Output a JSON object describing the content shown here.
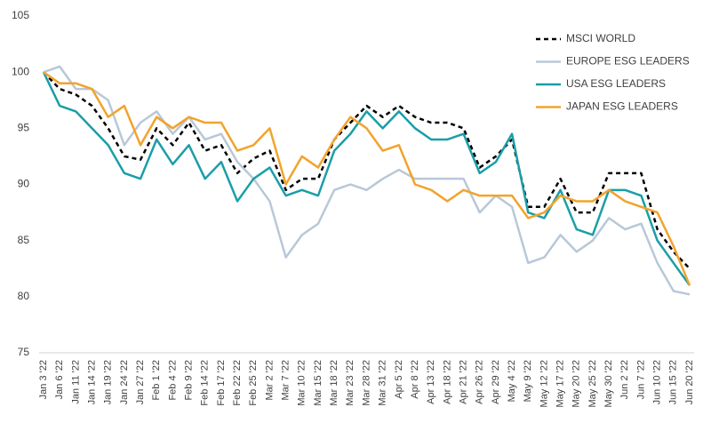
{
  "chart_data": {
    "type": "line",
    "categories": [
      "Jan 3 '22",
      "Jan 6 '22",
      "Jan 11 '22",
      "Jan 14 '22",
      "Jan 19 '22",
      "Jan 24 '22",
      "Jan 27 '22",
      "Feb 1 '22",
      "Feb 4 '22",
      "Feb 9 '22",
      "Feb 14 '22",
      "Feb 17 '22",
      "Feb 22 '22",
      "Feb 25 '22",
      "Mar 2 '22",
      "Mar 7 '22",
      "Mar 10 '22",
      "Mar 15 '22",
      "Mar 18 '22",
      "Mar 23 '22",
      "Mar 28 '22",
      "Mar 31 '22",
      "Apr 5 '22",
      "Apr 8 '22",
      "Apr 13 '22",
      "Apr 18 '22",
      "Apr 21 '22",
      "Apr 26 '22",
      "Apr 29 '22",
      "May 4 '22",
      "May 9 '22",
      "May 12 '22",
      "May 17 '22",
      "May 20 '22",
      "May 25 '22",
      "May 30 '22",
      "Jun 2 '22",
      "Jun 7 '22",
      "Jun 10 '22",
      "Jun 15 '22",
      "Jun 20 '22"
    ],
    "series": [
      {
        "name": "MSCI WORLD",
        "color": "#000000",
        "dashed": true,
        "values": [
          100,
          98.5,
          98,
          97,
          95,
          92.5,
          92.2,
          95,
          93.5,
          95.5,
          93,
          93.5,
          91,
          92.3,
          93,
          89.5,
          90.5,
          90.5,
          94,
          95.5,
          97,
          96,
          97,
          96,
          95.5,
          95.5,
          95,
          91.5,
          92.5,
          94,
          88,
          88,
          90.5,
          87.5,
          87.5,
          91,
          91,
          91,
          86,
          84,
          82.5
        ]
      },
      {
        "name": "EUROPE ESG LEADERS",
        "color": "#b8c8d8",
        "dashed": false,
        "values": [
          100,
          100.5,
          98.5,
          98.5,
          97.5,
          93.5,
          95.5,
          96.5,
          94.5,
          96,
          94,
          94.5,
          92,
          90.5,
          88.5,
          83.5,
          85.5,
          86.5,
          89.5,
          90,
          89.5,
          90.5,
          91.3,
          90.5,
          90.5,
          90.5,
          90.5,
          87.5,
          89,
          88,
          83,
          83.5,
          85.5,
          84,
          85,
          87,
          86,
          86.5,
          83,
          80.5,
          80.2
        ]
      },
      {
        "name": "USA ESG LEADERS",
        "color": "#1a9ea8",
        "dashed": false,
        "values": [
          100,
          97,
          96.5,
          95,
          93.5,
          91,
          90.5,
          94,
          91.8,
          93.5,
          90.5,
          92,
          88.5,
          90.5,
          91.5,
          89,
          89.5,
          89,
          93,
          94.5,
          96.5,
          95,
          96.5,
          95,
          94,
          94,
          94.5,
          91,
          92,
          94.5,
          87.5,
          87,
          89.5,
          86,
          85.5,
          89.5,
          89.5,
          89,
          85,
          83,
          81
        ]
      },
      {
        "name": "JAPAN ESG LEADERS",
        "color": "#f2a32c",
        "dashed": false,
        "values": [
          100,
          99,
          99,
          98.5,
          96,
          97,
          93.5,
          96,
          95,
          96,
          95.5,
          95.5,
          93,
          93.5,
          95,
          90,
          92.5,
          91.5,
          94,
          96,
          95,
          93,
          93.5,
          90,
          89.5,
          88.5,
          89.5,
          89,
          89,
          89,
          87,
          87.5,
          89,
          88.5,
          88.5,
          89.5,
          88.5,
          88,
          87.5,
          84.5,
          81
        ]
      }
    ],
    "ylim": [
      75,
      105
    ],
    "yticks": [
      75,
      80,
      85,
      90,
      95,
      100,
      105
    ],
    "grid": false,
    "legend": "top-right"
  }
}
